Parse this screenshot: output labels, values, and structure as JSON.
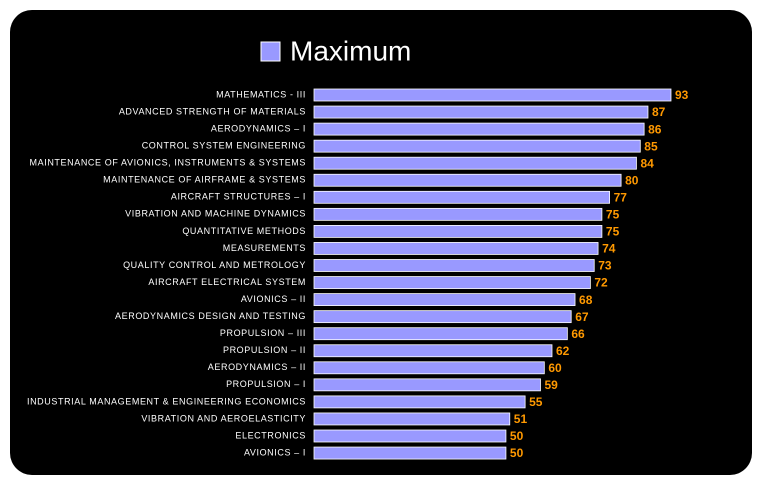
{
  "chart_data": {
    "type": "barh",
    "categories": [
      "MATHEMATICS - III",
      "ADVANCED STRENGTH OF MATERIALS",
      "AERODYNAMICS – I",
      "CONTROL SYSTEM ENGINEERING",
      "MAINTENANCE OF AVIONICS, INSTRUMENTS & SYSTEMS",
      "MAINTENANCE OF AIRFRAME & SYSTEMS",
      "AIRCRAFT STRUCTURES – I",
      "VIBRATION AND MACHINE DYNAMICS",
      "QUANTITATIVE METHODS",
      "MEASUREMENTS",
      "QUALITY CONTROL AND METROLOGY",
      "AIRCRAFT ELECTRICAL SYSTEM",
      "AVIONICS – II",
      "AERODYNAMICS DESIGN AND TESTING",
      "PROPULSION – III",
      "PROPULSION – II",
      "AERODYNAMICS – II",
      "PROPULSION – I",
      "INDUSTRIAL MANAGEMENT & ENGINEERING ECONOMICS",
      "VIBRATION AND AEROELASTICITY",
      "ELECTRONICS",
      "AVIONICS – I"
    ],
    "series": [
      {
        "name": "Maximum",
        "color": "#9999ff",
        "values": [
          93,
          87,
          86,
          85,
          84,
          80,
          77,
          75,
          75,
          74,
          73,
          72,
          68,
          67,
          66,
          62,
          60,
          59,
          55,
          51,
          50,
          50
        ]
      }
    ],
    "value_label_color": "#ff9900",
    "legend": "top"
  }
}
